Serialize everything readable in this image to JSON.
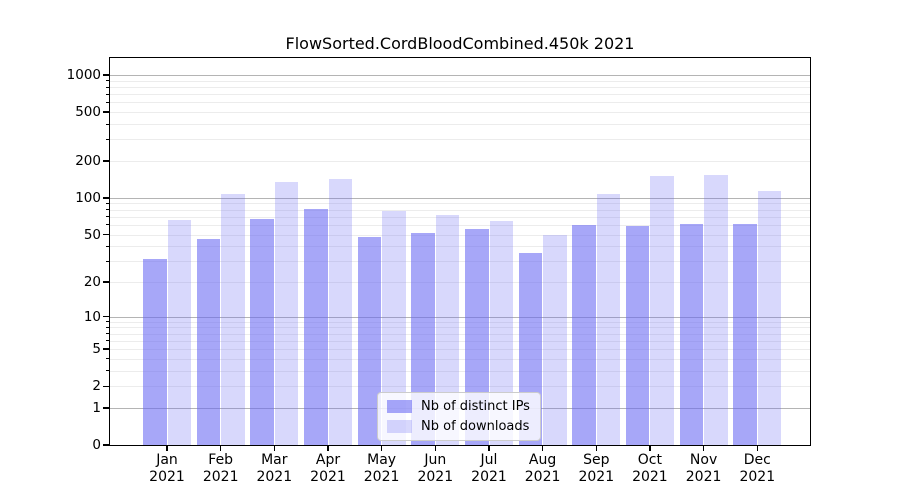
{
  "chart_data": {
    "type": "bar",
    "title": "FlowSorted.CordBloodCombined.450k 2021",
    "categories": [
      "Jan 2021",
      "Feb 2021",
      "Mar 2021",
      "Apr 2021",
      "May 2021",
      "Jun 2021",
      "Jul 2021",
      "Aug 2021",
      "Sep 2021",
      "Oct 2021",
      "Nov 2021",
      "Dec 2021"
    ],
    "months": [
      "Jan",
      "Feb",
      "Mar",
      "Apr",
      "May",
      "Jun",
      "Jul",
      "Aug",
      "Sep",
      "Oct",
      "Nov",
      "Dec"
    ],
    "year_label": "2021",
    "series": [
      {
        "name": "Nb of distinct IPs",
        "color": "rgba(100,100,242,0.57)",
        "values": [
          31,
          46,
          67,
          81,
          48,
          51,
          55,
          35,
          60,
          59,
          61,
          61
        ]
      },
      {
        "name": "Nb of downloads",
        "color": "rgba(100,100,242,0.25)",
        "values": [
          66,
          108,
          135,
          143,
          78,
          72,
          65,
          50,
          108,
          151,
          154,
          114
        ]
      }
    ],
    "y_ticks": [
      0,
      1,
      2,
      5,
      10,
      20,
      50,
      100,
      200,
      500,
      1000
    ],
    "y_minor_gridlines": [
      2,
      3,
      4,
      5,
      6,
      7,
      8,
      9,
      20,
      30,
      40,
      50,
      60,
      70,
      80,
      90,
      200,
      300,
      400,
      500,
      600,
      700,
      800,
      900
    ],
    "y_major_gridlines": [
      1,
      10,
      100,
      1000
    ],
    "y_scale": "log1p",
    "ylim": [
      0,
      1380
    ],
    "grid": true,
    "legend_position": "bottom-center"
  },
  "colors": {
    "bar_dark": "rgba(100,100,242,0.57)",
    "bar_light": "rgba(100,100,242,0.25)",
    "grid_major": "#b4b4b4",
    "grid_minor": "#ececec",
    "axis": "#000000",
    "background": "#ffffff"
  }
}
